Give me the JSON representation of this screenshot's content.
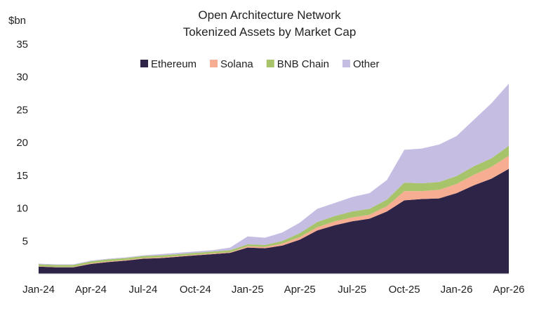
{
  "chart_data": {
    "type": "area",
    "stacked": true,
    "title": [
      "Open Architecture Network",
      "Tokenized Assets by Market Cap"
    ],
    "ylabel": "$bn",
    "ylim": [
      0,
      35
    ],
    "yticks": [
      5,
      10,
      15,
      20,
      25,
      30,
      35
    ],
    "x_tick_labels": [
      "Jan-24",
      "Apr-24",
      "Jul-24",
      "Oct-24",
      "Jan-25",
      "Apr-25",
      "Jul-25",
      "Oct-25",
      "Jan-26",
      "Apr-26"
    ],
    "x": [
      "Jan-24",
      "Feb-24",
      "Mar-24",
      "Apr-24",
      "May-24",
      "Jun-24",
      "Jul-24",
      "Aug-24",
      "Sep-24",
      "Oct-24",
      "Nov-24",
      "Dec-24",
      "Jan-25",
      "Feb-25",
      "Mar-25",
      "Apr-25",
      "May-25",
      "Jun-25",
      "Jul-25",
      "Aug-25",
      "Sep-25",
      "Oct-25",
      "Nov-25",
      "Dec-25",
      "Jan-26",
      "Feb-26",
      "Mar-26",
      "Apr-26"
    ],
    "legend_position": "top-center",
    "grid": false,
    "series": [
      {
        "name": "Ethereum",
        "color": "#2e2447",
        "values": [
          1.1,
          1.0,
          1.0,
          1.5,
          1.8,
          2.0,
          2.3,
          2.4,
          2.6,
          2.8,
          3.0,
          3.2,
          4.0,
          3.9,
          4.3,
          5.2,
          6.6,
          7.4,
          8.0,
          8.4,
          9.5,
          11.2,
          11.4,
          11.5,
          12.3,
          13.5,
          14.5,
          16.0
        ]
      },
      {
        "name": "Solana",
        "color": "#f6ad92",
        "values": [
          0.05,
          0.05,
          0.05,
          0.1,
          0.1,
          0.1,
          0.1,
          0.1,
          0.1,
          0.1,
          0.1,
          0.1,
          0.2,
          0.2,
          0.3,
          0.4,
          0.5,
          0.6,
          0.6,
          0.6,
          0.8,
          1.4,
          1.2,
          1.3,
          1.4,
          1.6,
          1.8,
          2.0
        ]
      },
      {
        "name": "BNB Chain",
        "color": "#a7c46a",
        "values": [
          0.3,
          0.3,
          0.3,
          0.3,
          0.3,
          0.3,
          0.3,
          0.3,
          0.3,
          0.3,
          0.3,
          0.3,
          0.3,
          0.3,
          0.4,
          0.6,
          0.8,
          0.8,
          0.9,
          0.9,
          1.0,
          1.3,
          1.2,
          1.2,
          1.2,
          1.3,
          1.3,
          1.5
        ]
      },
      {
        "name": "Other",
        "color": "#c5bde2",
        "values": [
          0.1,
          0.1,
          0.1,
          0.1,
          0.1,
          0.1,
          0.1,
          0.2,
          0.2,
          0.2,
          0.2,
          0.4,
          1.2,
          1.1,
          1.3,
          1.6,
          2.0,
          2.0,
          2.2,
          2.4,
          3.0,
          5.0,
          5.3,
          5.7,
          6.1,
          7.1,
          8.4,
          9.5
        ]
      }
    ]
  }
}
